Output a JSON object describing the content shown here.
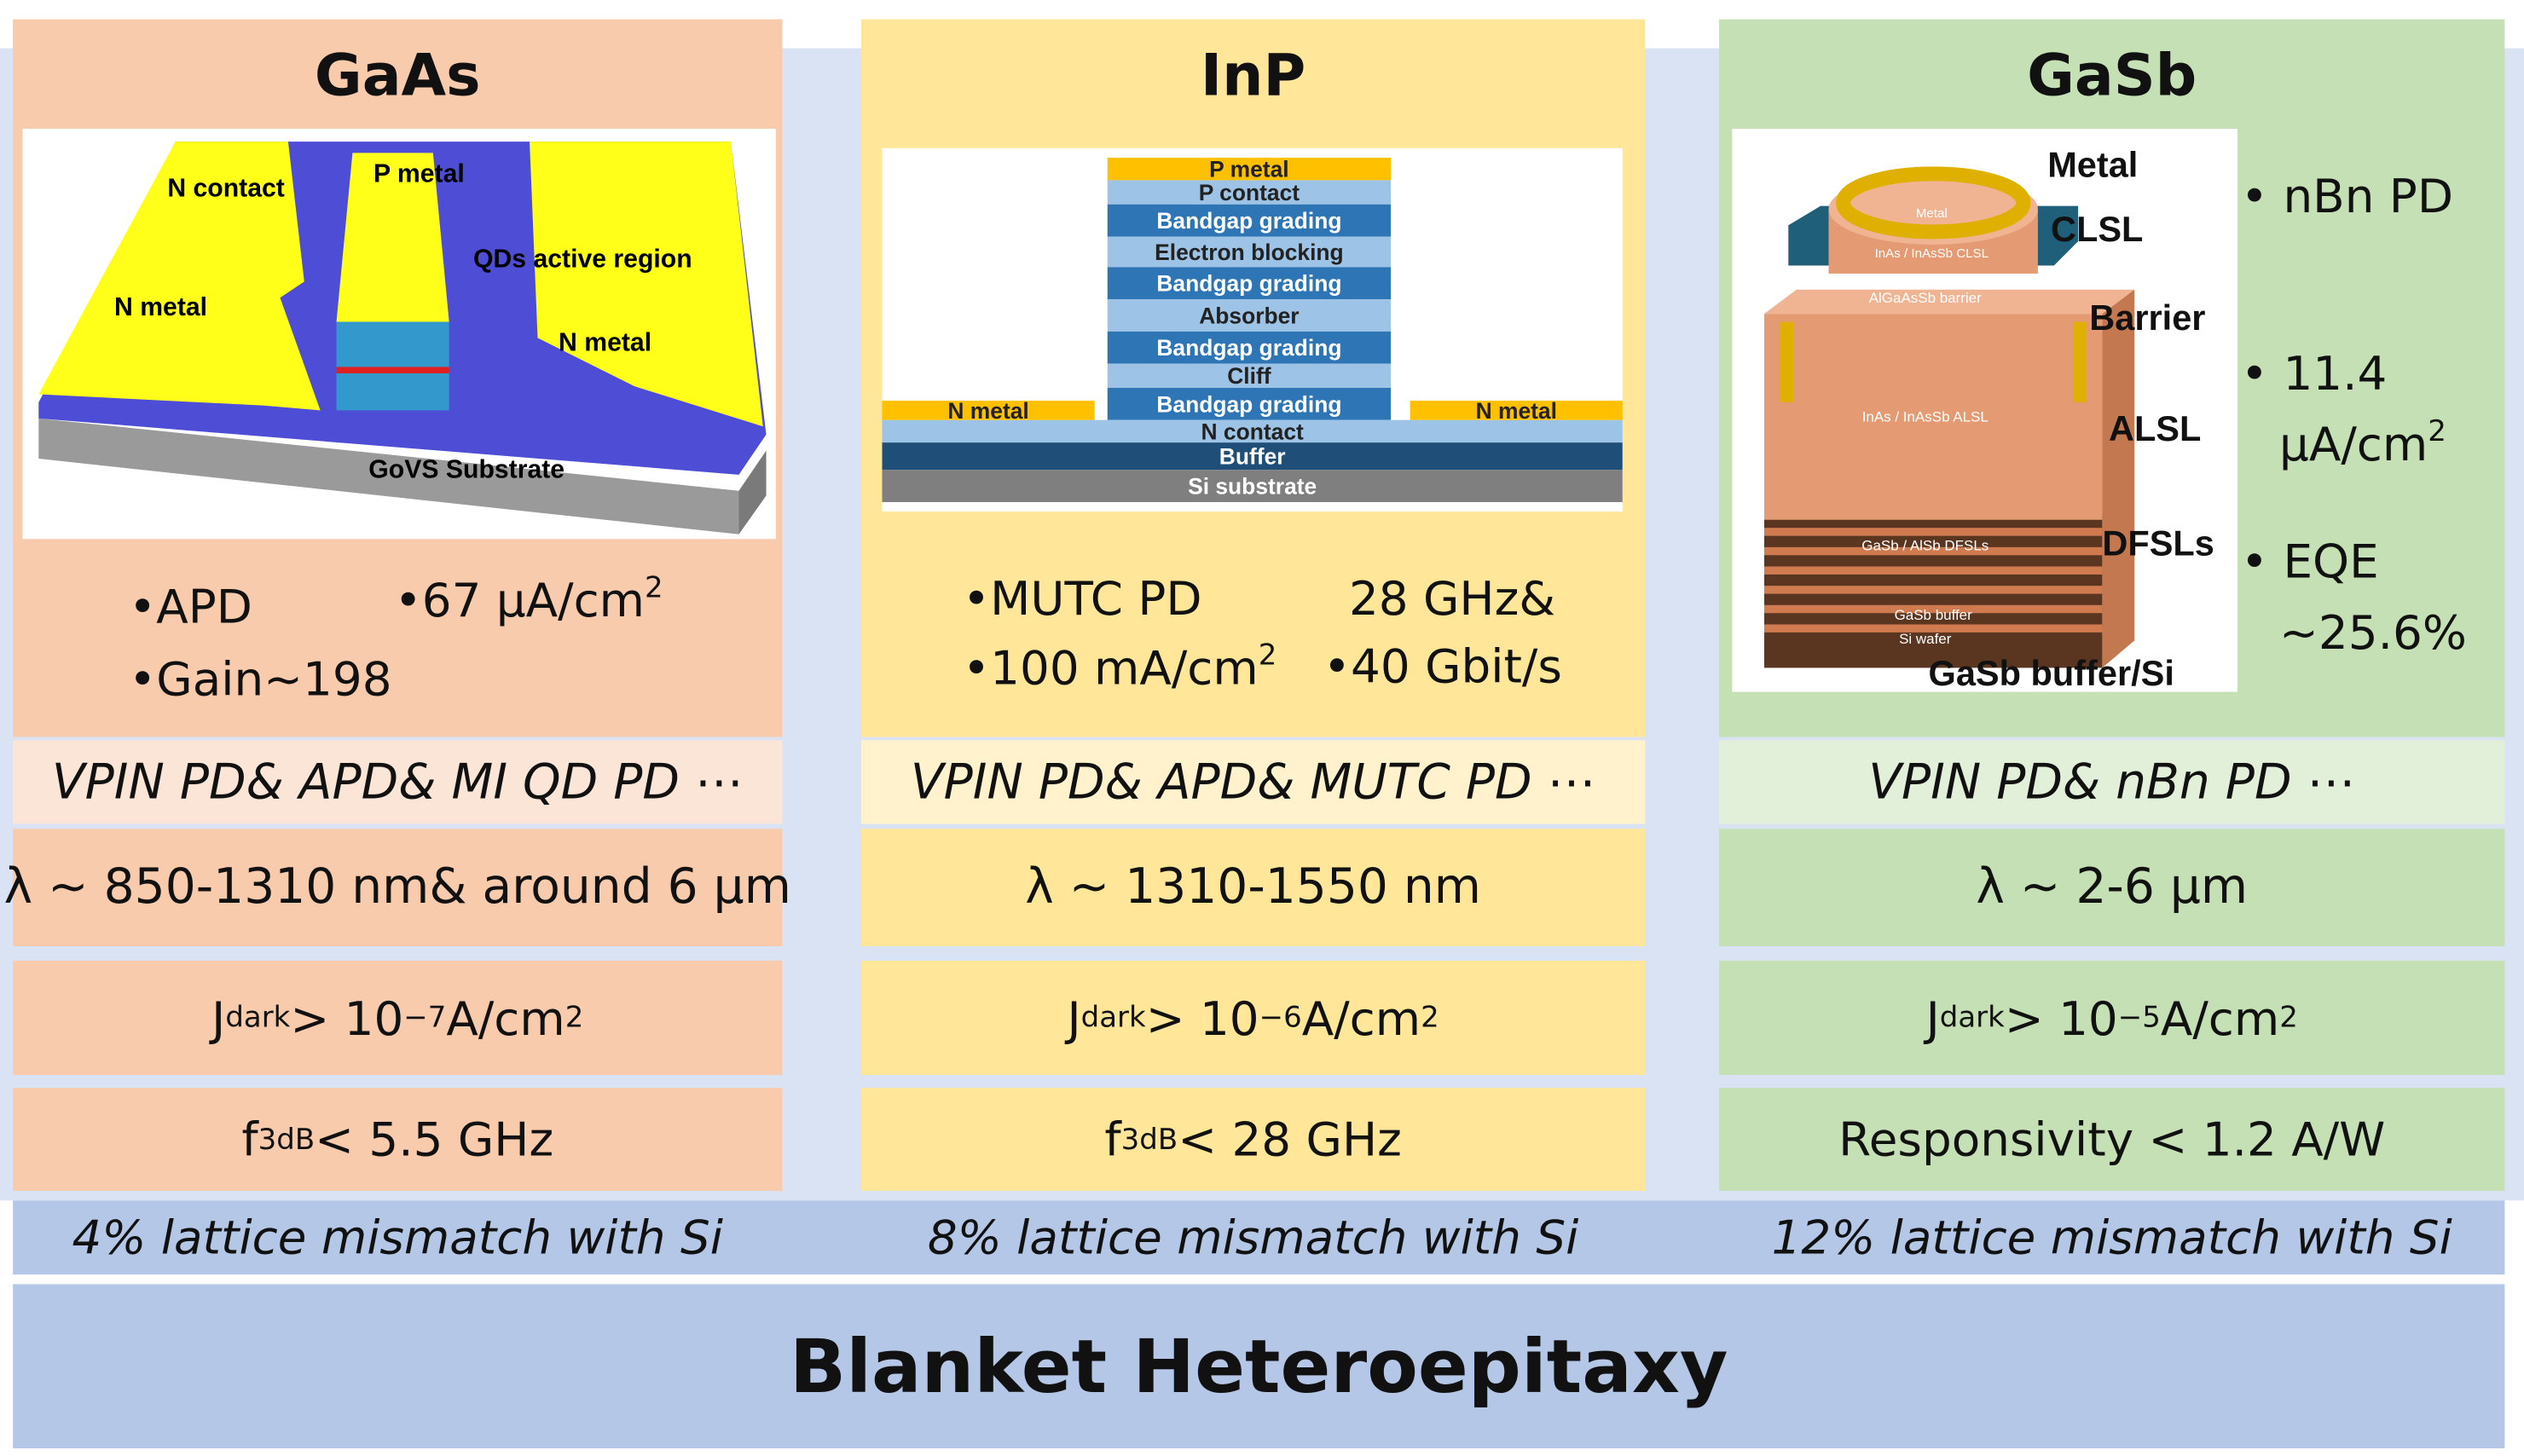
{
  "columns": [
    {
      "title": "GaAs",
      "figure": {
        "labels": [
          "N contact",
          "P metal",
          "QDs active region",
          "N metal",
          "N metal",
          "GoVS Substrate"
        ]
      },
      "bullets": [
        [
          "•APD"
        ],
        [
          "•67 μA/cm",
          "2"
        ],
        [
          "•Gain~198"
        ]
      ],
      "devices": "VPIN PD& APD& MI QD PD ⋯",
      "wavelength": "λ ~ 850-1310 nm& around 6 μm",
      "dark_current": [
        "J",
        "dark",
        " > 10",
        "−7",
        " A/cm",
        "2"
      ],
      "bandwidth": [
        "f",
        "3dB",
        " < 5.5 GHz"
      ],
      "mismatch": "4% lattice mismatch with Si"
    },
    {
      "title": "InP",
      "figure": {
        "labels": [
          "P metal",
          "P contact",
          "Bandgap grading",
          "Electron blocking",
          "Bandgap grading",
          "Absorber",
          "Bandgap grading",
          "Cliff",
          "Bandgap grading",
          "N contact",
          "Buffer",
          "Si substrate",
          "N metal",
          "N metal"
        ]
      },
      "bullets": [
        [
          "•MUTC PD"
        ],
        [
          "28 GHz&"
        ],
        [
          "•100 mA/cm",
          "2"
        ],
        [
          "•40 Gbit/s"
        ]
      ],
      "devices": "VPIN PD& APD& MUTC PD ⋯",
      "wavelength": "λ ~ 1310-1550 nm",
      "dark_current": [
        "J",
        "dark",
        " > 10",
        "−6",
        " A/cm",
        "2"
      ],
      "bandwidth": [
        "f",
        "3dB",
        " < 28 GHz"
      ],
      "mismatch": "8% lattice mismatch with Si"
    },
    {
      "title": "GaSb",
      "figure": {
        "labels": [
          "Metal",
          "CLSL",
          "Barrier",
          "ALSL",
          "DFSLs",
          "GaSb buffer/Si",
          "Metal",
          "InAs / InAsSb CLSL",
          "AlGaAsSb barrier",
          "InAs / InAsSb ALSL",
          "GaSb / AlSb DFSLs",
          "GaSb buffer",
          "Si wafer"
        ]
      },
      "bullets": [
        [
          "• nBn PD"
        ],
        [
          "• 11.4"
        ],
        [
          "μA/cm",
          "2"
        ],
        [
          "• EQE"
        ],
        [
          "~25.6%"
        ]
      ],
      "devices": "VPIN PD& nBn PD ⋯",
      "wavelength": "λ ~ 2-6 μm",
      "dark_current": [
        "J",
        "dark",
        " > 10",
        "−5",
        " A/cm",
        "2"
      ],
      "responsivity": "Responsivity < 1.2 A/W",
      "mismatch": "12% lattice mismatch with Si"
    }
  ],
  "footer": "Blanket Heteroepitaxy"
}
